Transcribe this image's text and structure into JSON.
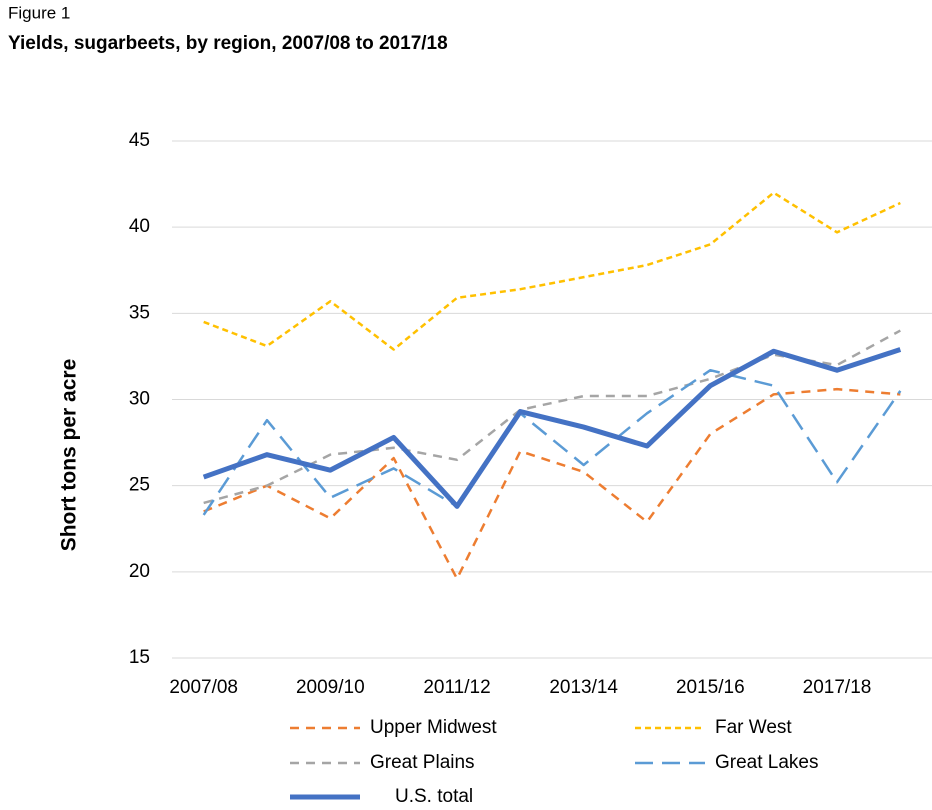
{
  "chart_data": {
    "type": "line",
    "figure_label": "Figure 1",
    "title": "Yields, sugarbeets, by region, 2007/08 to 2017/18",
    "y_label": "Short tons per acre",
    "categories": [
      "2007/08",
      null,
      "2009/10",
      null,
      "2011/12",
      null,
      "2013/14",
      null,
      "2015/16",
      null,
      "2017/18",
      null
    ],
    "series": [
      {
        "name": "Upper Midwest",
        "color": "#ED7D31",
        "values": [
          23.5,
          25.0,
          23.1,
          26.6,
          19.6,
          27.0,
          25.8,
          22.9,
          28.0,
          30.3,
          30.6,
          30.3
        ]
      },
      {
        "name": "Far West",
        "color": "#FFC000",
        "values": [
          34.5,
          33.1,
          35.7,
          32.9,
          35.9,
          36.4,
          37.1,
          37.8,
          39.0,
          42.0,
          39.7,
          41.4
        ]
      },
      {
        "name": "Great Plains",
        "color": "#A5A5A5",
        "values": [
          24.0,
          25.0,
          26.8,
          27.2,
          26.5,
          29.4,
          30.2,
          30.2,
          31.2,
          32.6,
          32.0,
          34.0
        ]
      },
      {
        "name": "Great Lakes",
        "color": "#5B9BD5",
        "values": [
          23.3,
          28.8,
          24.3,
          26.0,
          23.8,
          29.2,
          26.2,
          29.2,
          31.7,
          30.8,
          25.2,
          30.5
        ]
      },
      {
        "name": "U.S. total",
        "color": "#4472C4",
        "values": [
          25.5,
          26.8,
          25.9,
          27.8,
          23.8,
          29.3,
          28.4,
          27.3,
          30.8,
          32.8,
          31.7,
          32.9
        ]
      }
    ],
    "ylim": [
      15,
      45
    ],
    "yticks": [
      15,
      20,
      25,
      30,
      35,
      40,
      45
    ],
    "grid": true
  }
}
